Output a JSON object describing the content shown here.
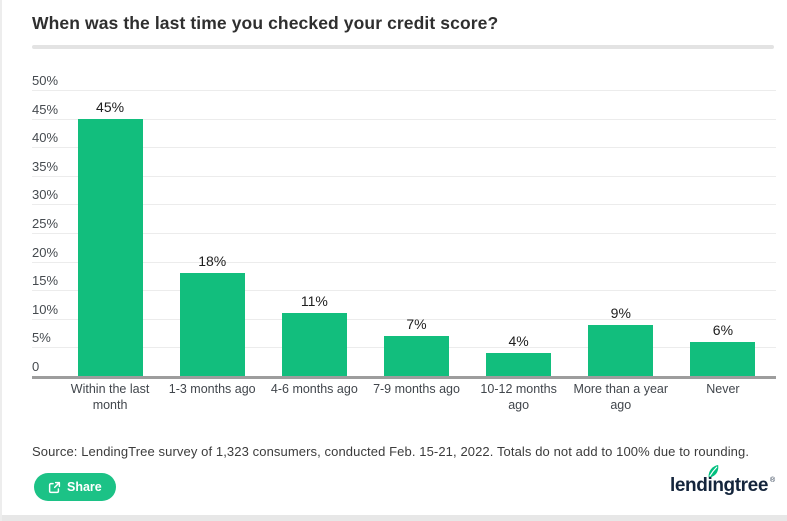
{
  "title": "When was the last time you checked your credit score?",
  "chart_data": {
    "type": "bar",
    "title": "When was the last time you checked your credit score?",
    "categories": [
      "Within the last month",
      "1-3 months ago",
      "4-6 months ago",
      "7-9 months ago",
      "10-12 months ago",
      "More than a year ago",
      "Never"
    ],
    "values": [
      45,
      18,
      11,
      7,
      4,
      9,
      6
    ],
    "value_labels": [
      "45%",
      "18%",
      "11%",
      "7%",
      "4%",
      "9%",
      "6%"
    ],
    "xlabel": "",
    "ylabel": "",
    "ylim": [
      0,
      50
    ],
    "ytick_step": 5,
    "yticks": [
      "0",
      "5%",
      "10%",
      "15%",
      "20%",
      "25%",
      "30%",
      "35%",
      "40%",
      "45%",
      "50%"
    ],
    "grid": true,
    "legend": false,
    "bar_color": "#12be7d"
  },
  "source_note": "Source: LendingTree survey of 1,323 consumers, conducted Feb. 15-21, 2022. Totals do not add to 100% due to rounding.",
  "share": {
    "label": "Share",
    "icon": "share-icon",
    "bg_color": "#1cc286"
  },
  "logo": {
    "text": "lendingtree",
    "reg_mark": "®",
    "leaf_icon": "leaf-icon",
    "text_color": "#14253c",
    "leaf_color": "#00c07f"
  }
}
